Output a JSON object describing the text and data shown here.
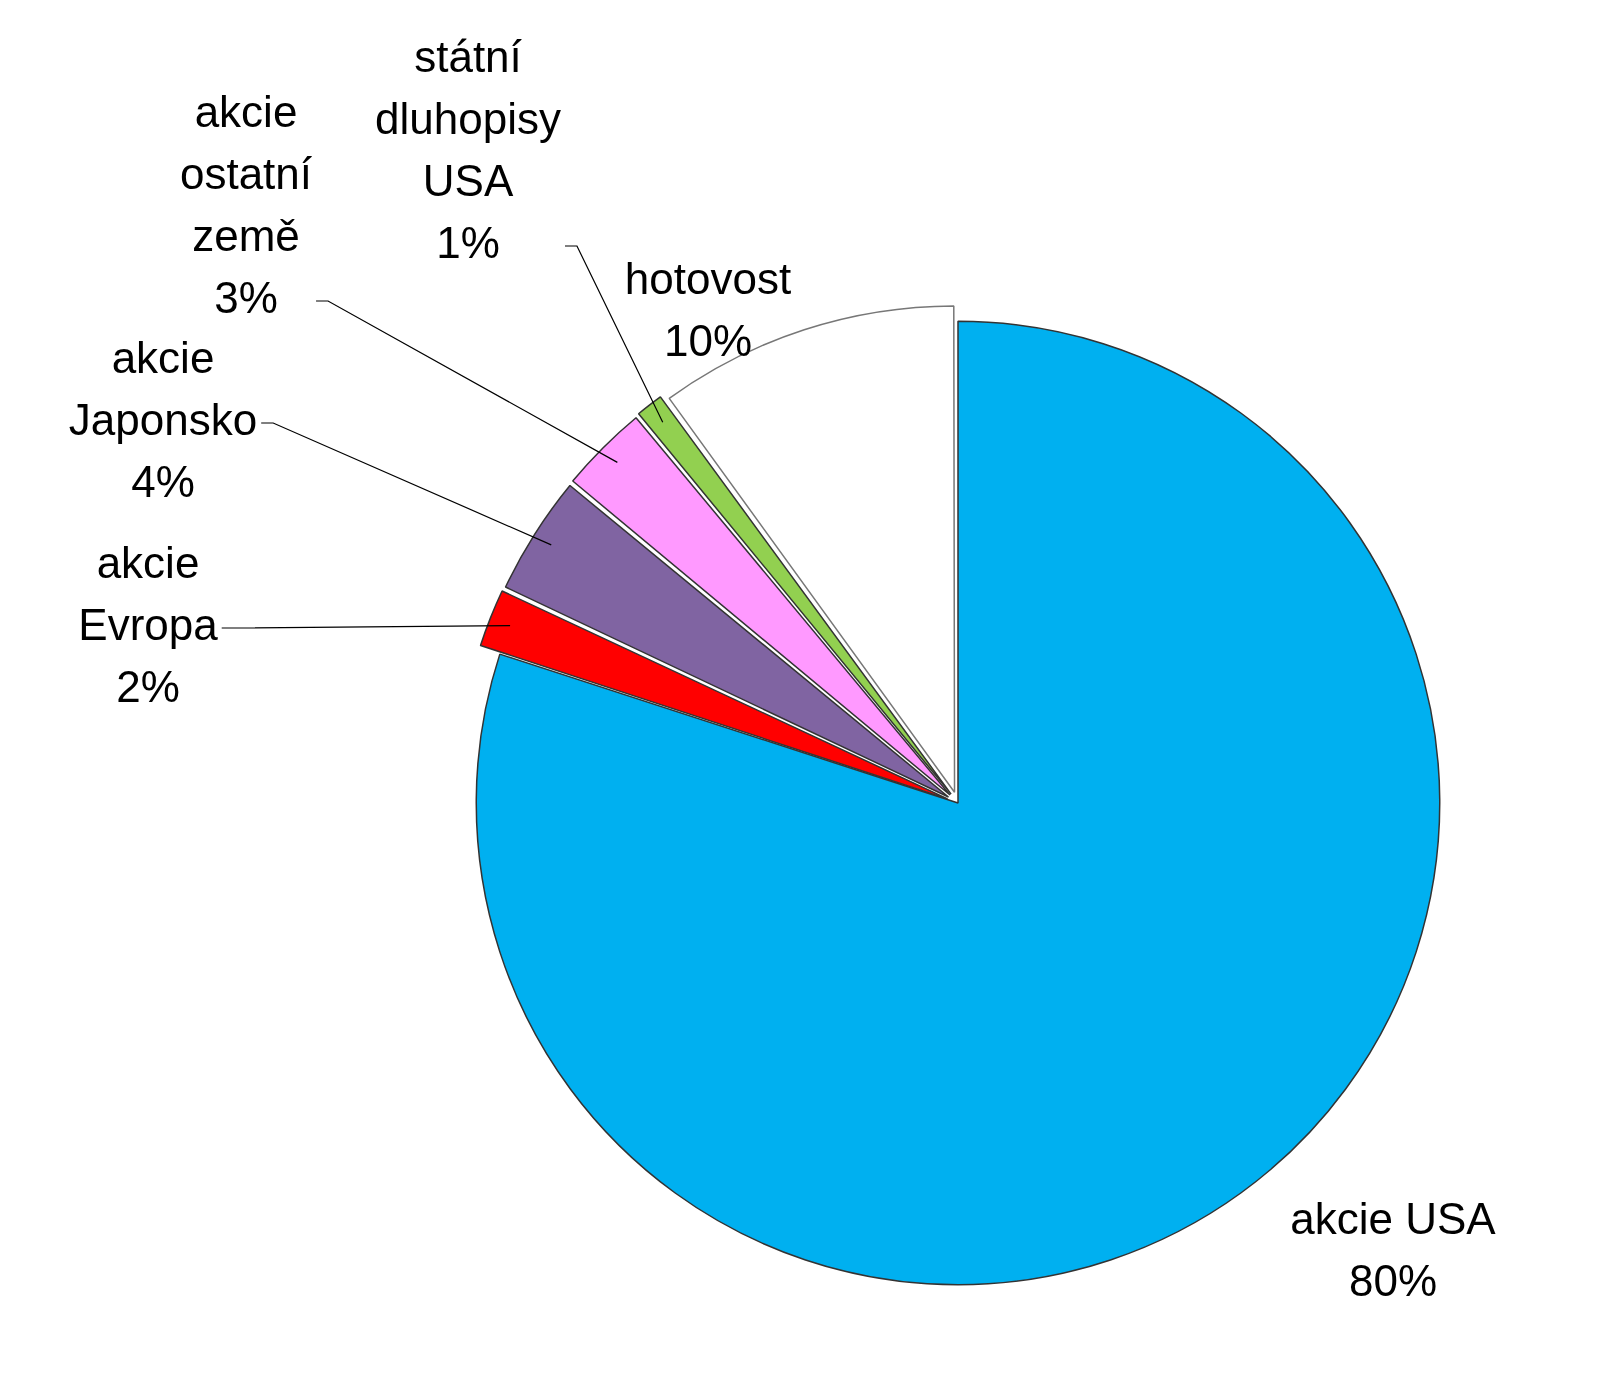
{
  "chart_data": {
    "type": "pie",
    "categories": [
      "akcie USA",
      "akcie Evropa",
      "akcie Japonsko",
      "akcie ostatní země",
      "státní dluhopisy USA",
      "hotovost"
    ],
    "values": [
      80,
      2,
      4,
      3,
      1,
      10
    ],
    "colors": [
      "#00b0f0",
      "#ff0000",
      "#8064a2",
      "#ff99ff",
      "#92d050",
      "#ffffff"
    ],
    "value_labels": [
      "80%",
      "2%",
      "4%",
      "3%",
      "1%",
      "10%"
    ],
    "legend": false
  }
}
